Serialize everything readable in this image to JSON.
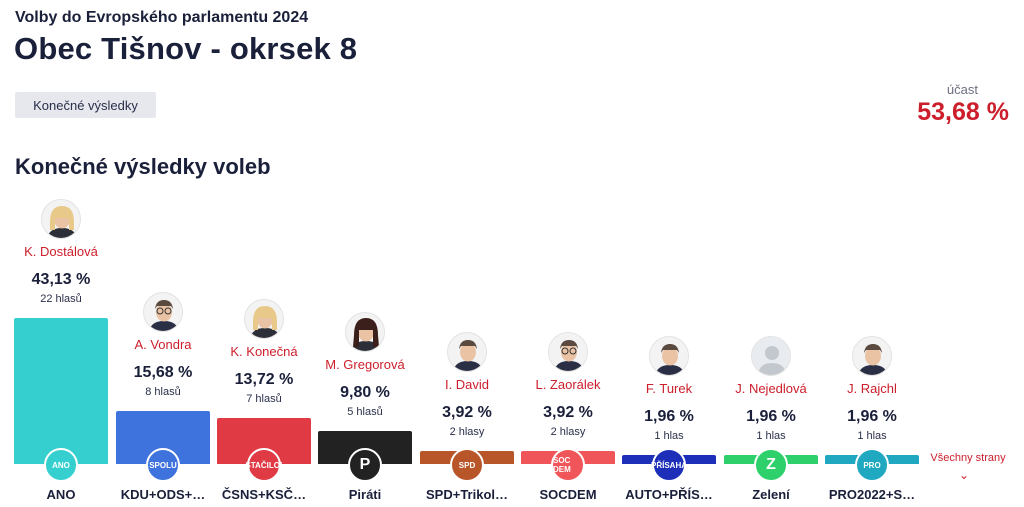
{
  "header": {
    "subtitle": "Volby do Evropského parlamentu 2024",
    "title": "Obec Tišnov - okrsek 8",
    "status_button": "Konečné výsledky"
  },
  "turnout": {
    "label": "účast",
    "value": "53,68 %"
  },
  "section_title": "Konečné výsledky voleb",
  "colors": {
    "accent": "#cc1e2b",
    "text": "#1a1f3a"
  },
  "parties": [
    {
      "name": "ANO",
      "logo_text": "ANO",
      "candidate": "K. Dostálová",
      "percent": "43,13 %",
      "votes": "22 hlasů",
      "share": 43.13,
      "color": "#35cfcf",
      "avatar": "person-female-blonde"
    },
    {
      "name": "KDU+ODS+…",
      "logo_text": "SPOLU",
      "candidate": "A. Vondra",
      "percent": "15,68 %",
      "votes": "8 hlasů",
      "share": 15.68,
      "color": "#3e73dd",
      "avatar": "person-male-glasses"
    },
    {
      "name": "ČSNS+KSČ…",
      "logo_text": "STAČILO!",
      "candidate": "K. Konečná",
      "percent": "13,72 %",
      "votes": "7 hlasů",
      "share": 13.72,
      "color": "#e03a45",
      "avatar": "person-female-blonde"
    },
    {
      "name": "Piráti",
      "logo_text": "P",
      "candidate": "M. Gregorová",
      "percent": "9,80 %",
      "votes": "5 hlasů",
      "share": 9.8,
      "color": "#222222",
      "avatar": "person-female-dark"
    },
    {
      "name": "SPD+Trikol…",
      "logo_text": "SPD",
      "candidate": "I. David",
      "percent": "3,92 %",
      "votes": "2 hlasy",
      "share": 3.92,
      "color": "#b8562a",
      "avatar": "person-male"
    },
    {
      "name": "SOCDEM",
      "logo_text": "SOC DEM",
      "candidate": "L. Zaorálek",
      "percent": "3,92 %",
      "votes": "2 hlasy",
      "share": 3.92,
      "color": "#f0555a",
      "avatar": "person-male-glasses"
    },
    {
      "name": "AUTO+PŘÍS…",
      "logo_text": "PŘÍSAHA",
      "candidate": "F. Turek",
      "percent": "1,96 %",
      "votes": "1 hlas",
      "share": 1.96,
      "color": "#1d2fb8",
      "avatar": "person-male"
    },
    {
      "name": "Zelení",
      "logo_text": "Z",
      "candidate": "J. Nejedlová",
      "percent": "1,96 %",
      "votes": "1 hlas",
      "share": 1.96,
      "color": "#2dd06a",
      "avatar": "person-placeholder"
    },
    {
      "name": "PRO2022+S…",
      "logo_text": "PRO",
      "candidate": "J. Rajchl",
      "percent": "1,96 %",
      "votes": "1 hlas",
      "share": 1.96,
      "color": "#1fa8c0",
      "avatar": "person-male"
    }
  ],
  "all_parties_link": "Všechny strany",
  "all_parties_icon": "chevron-down-icon"
}
